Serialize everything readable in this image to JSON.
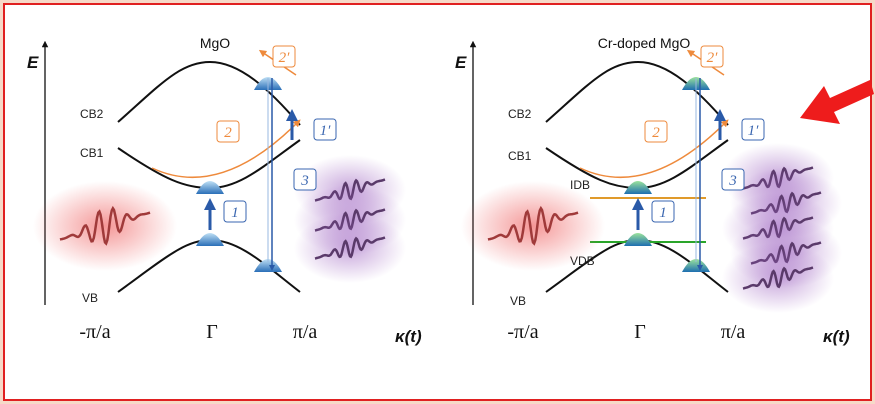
{
  "panels": [
    {
      "title": "MgO",
      "axis_label": "E",
      "bands": [
        "CB2",
        "CB1",
        "VB"
      ],
      "x_labels": [
        "-π/a",
        "Γ",
        "π/a"
      ],
      "x_axis_label": "κ(t)",
      "steps": [
        "1",
        "1′",
        "2",
        "2′",
        "3"
      ]
    },
    {
      "title": "Cr-doped MgO",
      "axis_label": "E",
      "bands": [
        "CB2",
        "CB1",
        "IDB",
        "VDB",
        "VB"
      ],
      "x_labels": [
        "-π/a",
        "Γ",
        "π/a"
      ],
      "x_axis_label": "κ(t)",
      "steps": [
        "1",
        "1′",
        "2",
        "2′",
        "3"
      ]
    }
  ]
}
